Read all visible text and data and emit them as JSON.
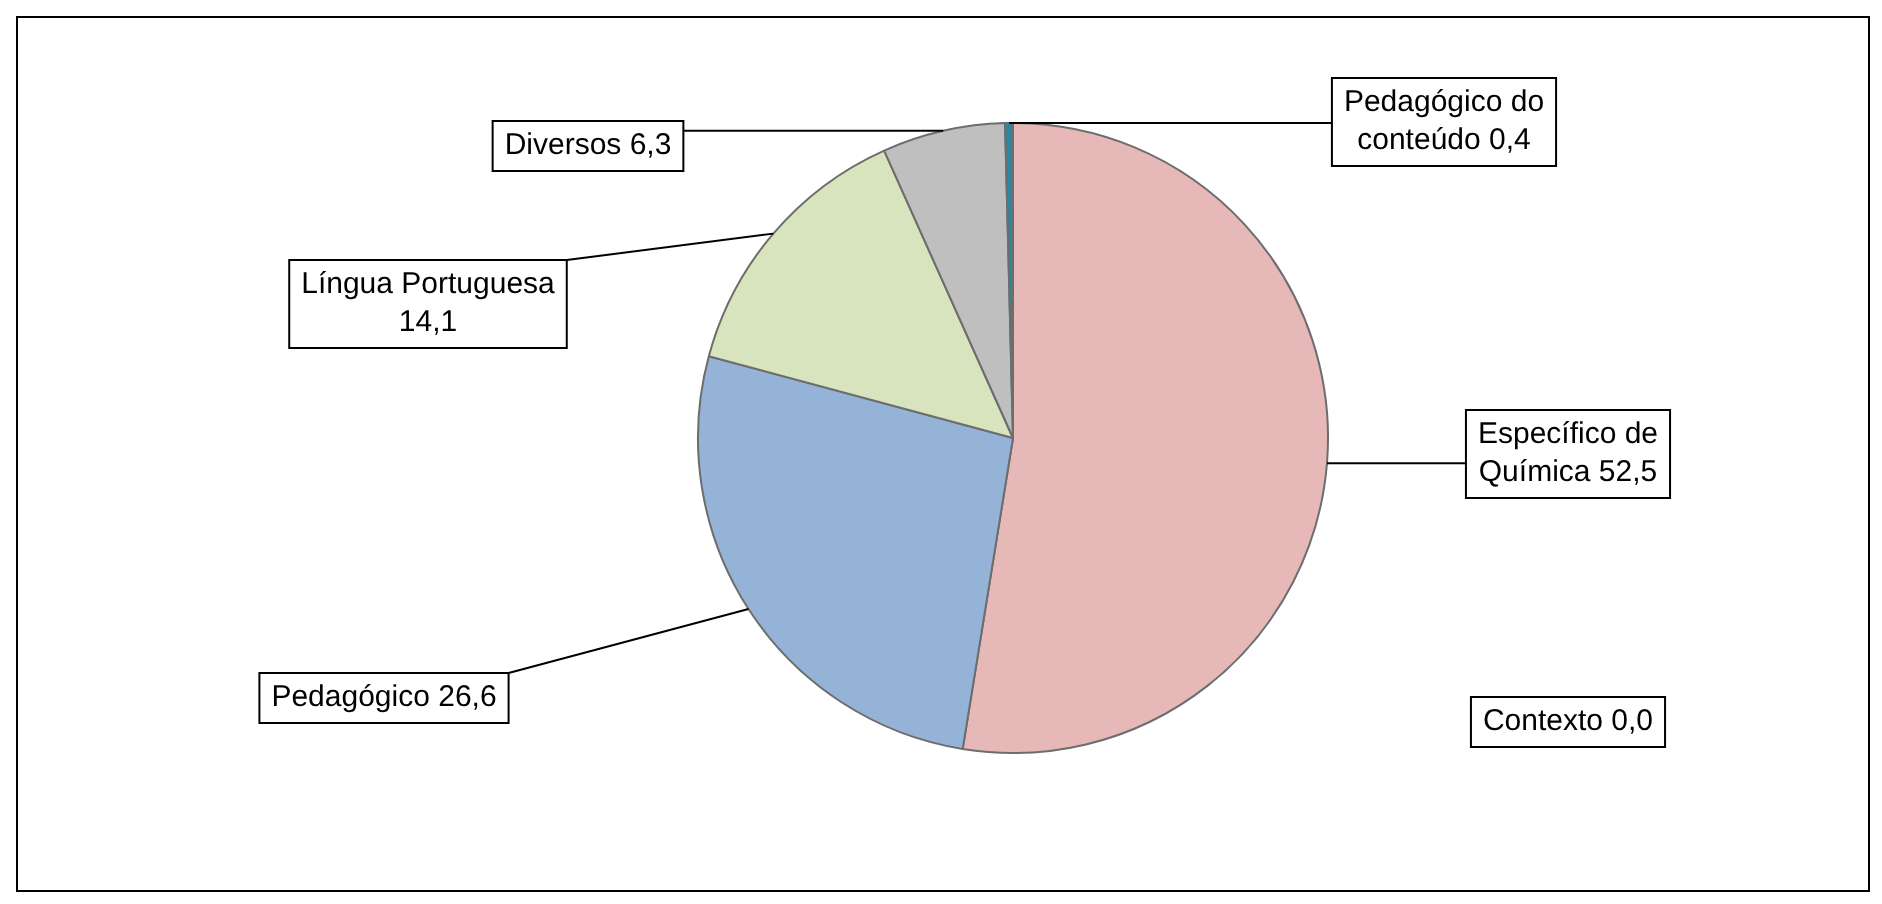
{
  "chart_data": {
    "type": "pie",
    "categories": [
      "Específico de Química",
      "Contexto",
      "Pedagógico",
      "Língua Portuguesa",
      "Diversos",
      "Pedagógico do conteúdo"
    ],
    "values": [
      52.5,
      0.0,
      26.6,
      14.1,
      6.3,
      0.4
    ],
    "value_labels": [
      "52,5",
      "0,0",
      "26,6",
      "14,1",
      "6,3",
      "0,4"
    ],
    "colors": [
      "#e6b9b8",
      "#b3a2c7",
      "#95b3d7",
      "#d7e4bd",
      "#bfbfbf",
      "#31859c"
    ],
    "legend": false
  }
}
